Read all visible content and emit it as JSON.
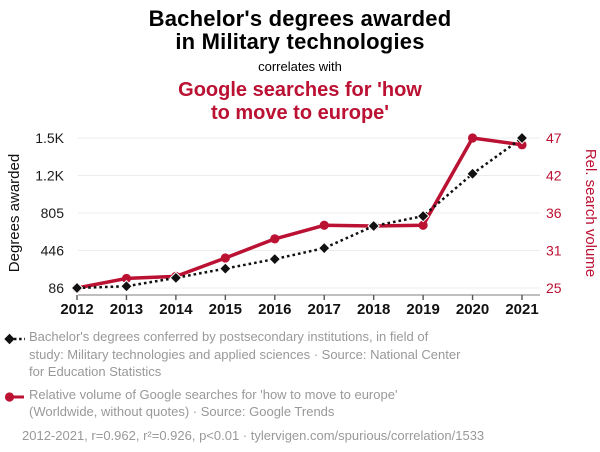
{
  "colors": {
    "red": "#bb1133",
    "black": "#111111",
    "gray_text": "#999999",
    "grid": "#ececec",
    "axis_line": "#999999"
  },
  "header": {
    "title_line1": "Bachelor's degrees awarded",
    "title_line2": "in Military technologies",
    "correlates_text": "correlates with",
    "subtitle_line1": "Google searches for 'how",
    "subtitle_line2": "to move to europe'"
  },
  "chart_data": {
    "type": "line",
    "x": [
      2012,
      2013,
      2014,
      2015,
      2016,
      2017,
      2018,
      2019,
      2020,
      2021
    ],
    "left_axis": {
      "label": "Degrees awarded",
      "min": 86,
      "max": 1523,
      "ticks": [
        "86",
        "446",
        "805",
        "1.2K",
        "1.5K"
      ]
    },
    "right_axis": {
      "label": "Rel. search volume",
      "min": 25,
      "max": 47,
      "ticks": [
        "25",
        "31",
        "36",
        "42",
        "47"
      ]
    },
    "grid": true,
    "legend_position": "below",
    "series": [
      {
        "name": "Bachelor's degrees in Military technologies",
        "axis": "left",
        "style": "solid-circle",
        "color": "#bb1133",
        "note": "red solid line with circle markers, plotted on right axis",
        "values_axis": "right",
        "values": [
          25,
          26.4,
          26.7,
          29.4,
          32.2,
          34.2,
          34.1,
          34.2,
          47,
          46
        ]
      },
      {
        "name": "Google searches 'how to move to europe'",
        "axis": "right",
        "style": "dashed-diamond",
        "color": "#111111",
        "note": "black dotted line with diamond markers, plotted on left axis",
        "values_axis": "left",
        "values": [
          86,
          103,
          183,
          272,
          363,
          468,
          680,
          775,
          1180,
          1523
        ]
      }
    ]
  },
  "legend": {
    "degrees_label": "Bachelor's degrees conferred by postsecondary institutions, in field of\nstudy: Military technologies and applied sciences · Source: National Center\nfor Education Statistics",
    "searches_label": "Relative volume of Google searches for 'how to move to europe'\n(Worldwide, without quotes) · Source: Google Trends",
    "stats_line": "2012-2021, r=0.962, r²=0.926, p<0.01 · tylervigen.com/spurious/correlation/1533"
  }
}
